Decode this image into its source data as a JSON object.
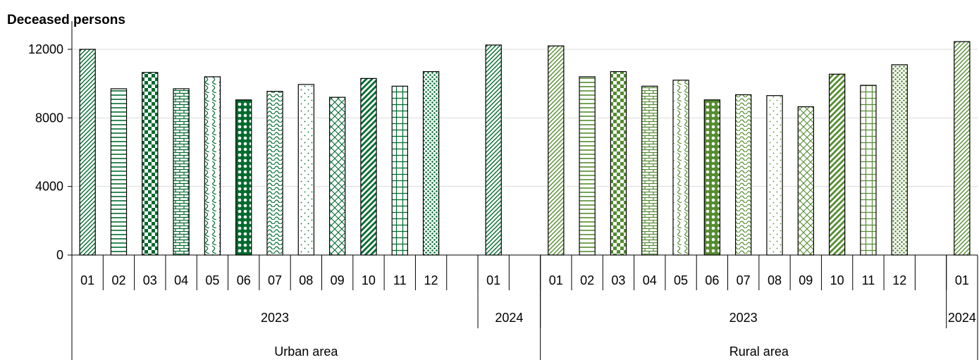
{
  "chart_data": {
    "type": "bar",
    "ylabel": "Deceased persons",
    "ylim": [
      0,
      12000
    ],
    "yticks": [
      "0",
      "4000",
      "8000",
      "12000"
    ],
    "grid": true,
    "legend": "none",
    "categories": [
      {
        "group": "Urban area",
        "year": "2023",
        "month": "01",
        "value": 12000
      },
      {
        "group": "Urban area",
        "year": "2023",
        "month": "02",
        "value": 9700
      },
      {
        "group": "Urban area",
        "year": "2023",
        "month": "03",
        "value": 10650
      },
      {
        "group": "Urban area",
        "year": "2023",
        "month": "04",
        "value": 9700
      },
      {
        "group": "Urban area",
        "year": "2023",
        "month": "05",
        "value": 10400
      },
      {
        "group": "Urban area",
        "year": "2023",
        "month": "06",
        "value": 9050
      },
      {
        "group": "Urban area",
        "year": "2023",
        "month": "07",
        "value": 9550
      },
      {
        "group": "Urban area",
        "year": "2023",
        "month": "08",
        "value": 9950
      },
      {
        "group": "Urban area",
        "year": "2023",
        "month": "09",
        "value": 9200
      },
      {
        "group": "Urban area",
        "year": "2023",
        "month": "10",
        "value": 10300
      },
      {
        "group": "Urban area",
        "year": "2023",
        "month": "11",
        "value": 9850
      },
      {
        "group": "Urban area",
        "year": "2023",
        "month": "12",
        "value": 10700
      },
      {
        "group": "Urban area",
        "year": "2024",
        "month": "01",
        "value": 12250
      },
      {
        "group": "Rural area",
        "year": "2023",
        "month": "01",
        "value": 12200
      },
      {
        "group": "Rural area",
        "year": "2023",
        "month": "02",
        "value": 10400
      },
      {
        "group": "Rural area",
        "year": "2023",
        "month": "03",
        "value": 10700
      },
      {
        "group": "Rural area",
        "year": "2023",
        "month": "04",
        "value": 9850
      },
      {
        "group": "Rural area",
        "year": "2023",
        "month": "05",
        "value": 10200
      },
      {
        "group": "Rural area",
        "year": "2023",
        "month": "06",
        "value": 9050
      },
      {
        "group": "Rural area",
        "year": "2023",
        "month": "07",
        "value": 9350
      },
      {
        "group": "Rural area",
        "year": "2023",
        "month": "08",
        "value": 9300
      },
      {
        "group": "Rural area",
        "year": "2023",
        "month": "09",
        "value": 8650
      },
      {
        "group": "Rural area",
        "year": "2023",
        "month": "10",
        "value": 10550
      },
      {
        "group": "Rural area",
        "year": "2023",
        "month": "11",
        "value": 9900
      },
      {
        "group": "Rural area",
        "year": "2023",
        "month": "12",
        "value": 11100
      },
      {
        "group": "Rural area",
        "year": "2024",
        "month": "01",
        "value": 12450
      }
    ],
    "colors": {
      "urban": "#006b2e",
      "rural": "#548c2f",
      "gridline": "#d9d9d9",
      "axis": "#000000"
    }
  }
}
